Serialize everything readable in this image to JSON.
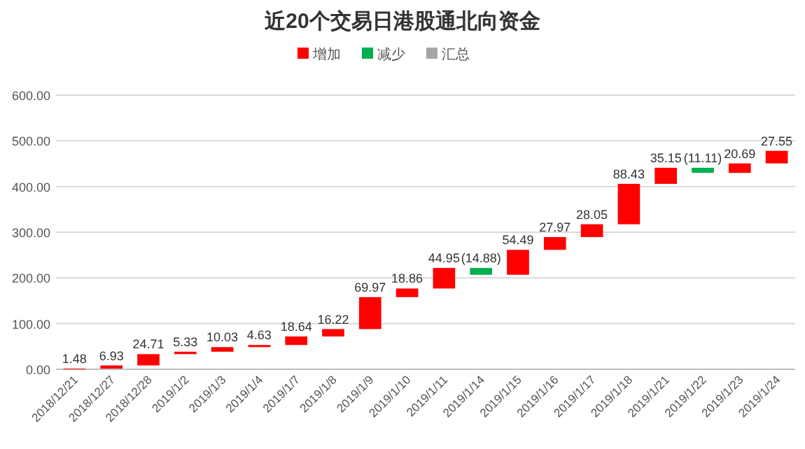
{
  "chart_data": {
    "type": "bar",
    "title": "近20个交易日港股通北向资金",
    "categories": [
      "2018/12/21",
      "2018/12/27",
      "2018/12/28",
      "2019/1/2",
      "2019/1/3",
      "2019/1/4",
      "2019/1/7",
      "2019/1/8",
      "2019/1/9",
      "2019/1/10",
      "2019/1/11",
      "2019/1/14",
      "2019/1/15",
      "2019/1/16",
      "2019/1/17",
      "2019/1/18",
      "2019/1/21",
      "2019/1/22",
      "2019/1/23",
      "2019/1/24"
    ],
    "series": [
      {
        "name": "增加",
        "color": "#ff0000",
        "base": [
          0,
          1.48,
          8.41,
          33.12,
          38.45,
          48.48,
          53.11,
          71.75,
          87.97,
          157.94,
          176.8,
          null,
          206.87,
          261.36,
          289.33,
          317.38,
          405.81,
          null,
          429.85,
          450.54
        ],
        "values": [
          1.48,
          6.93,
          24.71,
          5.33,
          10.03,
          4.63,
          18.64,
          16.22,
          69.97,
          18.86,
          44.95,
          null,
          54.49,
          27.97,
          28.05,
          88.43,
          35.15,
          null,
          20.69,
          27.55
        ],
        "value_labels": [
          "1.48",
          "6.93",
          "24.71",
          "5.33",
          "10.03",
          "4.63",
          "18.64",
          "16.22",
          "69.97",
          "18.86",
          "44.95",
          null,
          "54.49",
          "27.97",
          "28.05",
          "88.43",
          "35.15",
          null,
          "20.69",
          "27.55"
        ]
      },
      {
        "name": "减少",
        "color": "#00b050",
        "base": [
          null,
          null,
          null,
          null,
          null,
          null,
          null,
          null,
          null,
          null,
          null,
          221.75,
          null,
          null,
          null,
          null,
          null,
          440.96,
          null,
          null
        ],
        "values": [
          null,
          null,
          null,
          null,
          null,
          null,
          null,
          null,
          null,
          null,
          null,
          -14.88,
          null,
          null,
          null,
          null,
          null,
          -11.11,
          null,
          null
        ],
        "value_labels": [
          null,
          null,
          null,
          null,
          null,
          null,
          null,
          null,
          null,
          null,
          null,
          "(14.88)",
          null,
          null,
          null,
          null,
          null,
          "(11.11)",
          null,
          null
        ]
      },
      {
        "name": "汇总",
        "color": "#a6a6a6",
        "values": [
          null,
          null,
          null,
          null,
          null,
          null,
          null,
          null,
          null,
          null,
          null,
          null,
          null,
          null,
          null,
          null,
          null,
          null,
          null,
          null
        ]
      }
    ],
    "ylim": [
      0,
      600
    ],
    "yticks": [
      {
        "value": 0,
        "label": "0.00"
      },
      {
        "value": 100,
        "label": "100.00"
      },
      {
        "value": 200,
        "label": "200.00"
      },
      {
        "value": 300,
        "label": "300.00"
      },
      {
        "value": 400,
        "label": "400.00"
      },
      {
        "value": 500,
        "label": "500.00"
      },
      {
        "value": 600,
        "label": "600.00"
      }
    ],
    "grid": "y",
    "legend": "top"
  }
}
